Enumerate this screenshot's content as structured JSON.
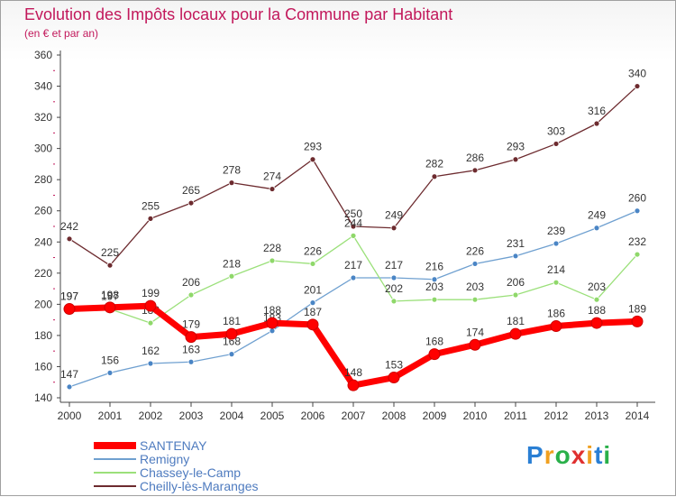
{
  "header": {
    "title": "Evolution des Impôts locaux pour la Commune par Habitant",
    "subtitle": "(en € et par an)"
  },
  "brand": {
    "letters": [
      "P",
      "r",
      "o",
      "x",
      "i",
      "t",
      "i"
    ],
    "colors": [
      "#2a7fd4",
      "#f0a020",
      "#2ab04a",
      "#e03030",
      "#f0a020",
      "#2a7fd4",
      "#2ab04a"
    ]
  },
  "chart_data": {
    "type": "line",
    "ylim": [
      140,
      360
    ],
    "yticks": [
      140,
      160,
      180,
      200,
      220,
      240,
      260,
      280,
      300,
      320,
      340,
      360
    ],
    "categories": [
      "2000",
      "2001",
      "2002",
      "2003",
      "2004",
      "2005",
      "2006",
      "2007",
      "2008",
      "2009",
      "2010",
      "2011",
      "2012",
      "2013",
      "2014"
    ],
    "grid": false,
    "legend_position": "bottom-left",
    "series": [
      {
        "name": "Cheilly-lès-Maranges",
        "color": "#6d2b2f",
        "width": 1.3,
        "marker": "#6d2b2f",
        "values": [
          242,
          225,
          255,
          265,
          278,
          274,
          293,
          250,
          249,
          282,
          286,
          293,
          303,
          316,
          340
        ]
      },
      {
        "name": "Remigny",
        "color": "#6fa0d0",
        "width": 1.3,
        "marker": "#4a85c5",
        "values": [
          147,
          156,
          162,
          163,
          168,
          183,
          201,
          217,
          217,
          216,
          226,
          231,
          239,
          249,
          260
        ]
      },
      {
        "name": "Chassey-le-Camp",
        "color": "#9be07a",
        "width": 1.3,
        "marker": "#8fd86a",
        "values": [
          197,
          197,
          188,
          206,
          218,
          228,
          226,
          244,
          202,
          203,
          203,
          206,
          214,
          203,
          232
        ]
      },
      {
        "name": "SANTENAY",
        "color": "#ff0000",
        "width": 7,
        "marker": "#ff0000",
        "values": [
          197,
          198,
          199,
          179,
          181,
          188,
          187,
          148,
          153,
          168,
          174,
          181,
          186,
          188,
          189
        ]
      }
    ],
    "data_labels": {
      "Cheilly-lès-Maranges": [
        "242",
        "225",
        "255",
        "265",
        "278",
        "274",
        "293",
        "250",
        "249",
        "282",
        "286",
        "293",
        "303",
        "316",
        "340"
      ],
      "Remigny": [
        "147",
        "156",
        "162",
        "163",
        "168",
        "183",
        "201",
        "217",
        "217",
        "216",
        "226",
        "231",
        "239",
        "249",
        "260"
      ],
      "Chassey-le-Camp": [
        "197",
        "197",
        "188",
        "206",
        "218",
        "228",
        "226",
        "244",
        "202",
        "203",
        "203",
        "206",
        "214",
        "203",
        "232"
      ],
      "SANTENAY": [
        "197",
        "198",
        "199",
        "179",
        "181",
        "188",
        "187",
        "148",
        "153",
        "168",
        "174",
        "181",
        "186",
        "188",
        "189"
      ]
    },
    "legend": [
      "SANTENAY",
      "Remigny",
      "Chassey-le-Camp",
      "Cheilly-lès-Maranges"
    ]
  }
}
